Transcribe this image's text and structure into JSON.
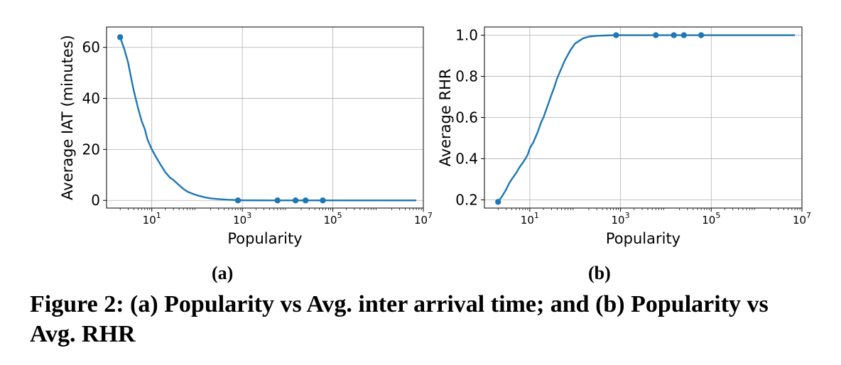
{
  "chart_data": [
    {
      "id": "a",
      "type": "line",
      "xlabel": "Popularity",
      "ylabel": "Average IAT (minutes)",
      "xscale": "log",
      "xlim": [
        1,
        10000000
      ],
      "ylim": [
        -3,
        68
      ],
      "xticks": [
        {
          "base": "10",
          "exp": "1",
          "value": 10
        },
        {
          "base": "10",
          "exp": "3",
          "value": 1000
        },
        {
          "base": "10",
          "exp": "5",
          "value": 100000
        },
        {
          "base": "10",
          "exp": "7",
          "value": 10000000
        }
      ],
      "yticks": [
        {
          "label": "0",
          "value": 0
        },
        {
          "label": "20",
          "value": 20
        },
        {
          "label": "40",
          "value": 40
        },
        {
          "label": "60",
          "value": 60
        }
      ],
      "grid": true,
      "color": "#1f77b4",
      "series": [
        {
          "x": [
            2,
            2.5,
            3,
            3.5,
            4,
            5,
            6,
            7,
            8,
            10,
            12,
            15,
            20,
            25,
            30,
            40,
            50,
            60,
            80,
            100,
            150,
            200,
            300,
            500,
            800,
            1000,
            2000,
            5000,
            10000,
            100000,
            1000000,
            7000000
          ],
          "y": [
            64,
            59,
            54,
            48,
            43,
            36,
            31,
            28,
            24,
            20,
            17.5,
            14.5,
            11,
            9,
            8,
            6,
            4.5,
            3.5,
            2.6,
            2,
            1.2,
            0.8,
            0.5,
            0.25,
            0.1,
            0.05,
            0.03,
            0.02,
            0.02,
            0.02,
            0.02,
            0.02
          ],
          "markers": [
            {
              "x": 2,
              "y": 64
            },
            {
              "x": 800,
              "y": 0
            },
            {
              "x": 6000,
              "y": 0
            },
            {
              "x": 15000,
              "y": 0
            },
            {
              "x": 25000,
              "y": 0
            },
            {
              "x": 60000,
              "y": 0
            }
          ]
        }
      ]
    },
    {
      "id": "b",
      "type": "line",
      "xlabel": "Popularity",
      "ylabel": "Average RHR",
      "xscale": "log",
      "xlim": [
        1,
        10000000
      ],
      "ylim": [
        0.16,
        1.04
      ],
      "xticks": [
        {
          "base": "10",
          "exp": "1",
          "value": 10
        },
        {
          "base": "10",
          "exp": "3",
          "value": 1000
        },
        {
          "base": "10",
          "exp": "5",
          "value": 100000
        },
        {
          "base": "10",
          "exp": "7",
          "value": 10000000
        }
      ],
      "yticks": [
        {
          "label": "0.2",
          "value": 0.2
        },
        {
          "label": "0.4",
          "value": 0.4
        },
        {
          "label": "0.6",
          "value": 0.6
        },
        {
          "label": "0.8",
          "value": 0.8
        },
        {
          "label": "1.0",
          "value": 1.0
        }
      ],
      "grid": true,
      "color": "#1f77b4",
      "series": [
        {
          "x": [
            2,
            2.5,
            3,
            3.5,
            4,
            5,
            6,
            7,
            8,
            9,
            10,
            12,
            15,
            18,
            20,
            25,
            30,
            35,
            40,
            50,
            60,
            80,
            100,
            150,
            200,
            300,
            500,
            800,
            1000,
            10000,
            100000,
            1000000,
            7000000
          ],
          "y": [
            0.19,
            0.22,
            0.25,
            0.28,
            0.3,
            0.33,
            0.36,
            0.38,
            0.4,
            0.42,
            0.45,
            0.48,
            0.53,
            0.58,
            0.6,
            0.66,
            0.71,
            0.75,
            0.79,
            0.84,
            0.88,
            0.93,
            0.96,
            0.985,
            0.993,
            0.997,
            0.999,
            1.0,
            1.0,
            1.0,
            1.0,
            1.0,
            1.0
          ],
          "markers": [
            {
              "x": 2,
              "y": 0.19
            },
            {
              "x": 800,
              "y": 1.0
            },
            {
              "x": 6000,
              "y": 1.0
            },
            {
              "x": 15000,
              "y": 1.0
            },
            {
              "x": 25000,
              "y": 1.0
            },
            {
              "x": 60000,
              "y": 1.0
            }
          ]
        }
      ]
    }
  ],
  "sublabels": {
    "a": "(a)",
    "b": "(b)"
  },
  "caption": "Figure 2: (a) Popularity vs Avg. inter arrival time; and (b) Popularity vs Avg. RHR"
}
